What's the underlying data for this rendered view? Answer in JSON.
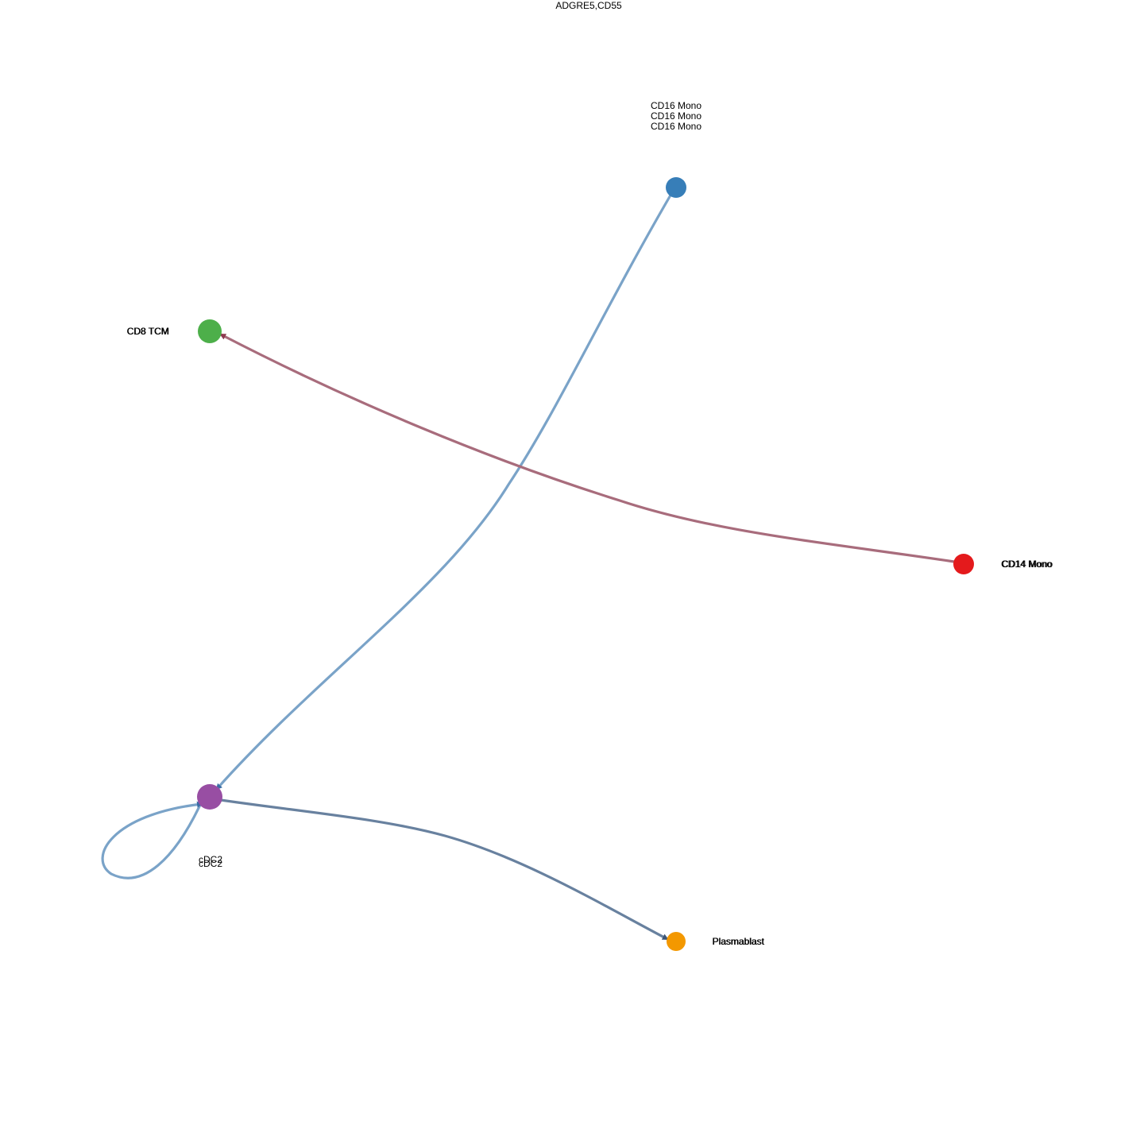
{
  "title": "ADGRE5,CD55",
  "nodes": [
    {
      "id": "cd16",
      "label": "CD16 Mono",
      "color": "#377EB8"
    },
    {
      "id": "cd8",
      "label": "CD8 TCM",
      "color": "#4DAF4A"
    },
    {
      "id": "cd14",
      "label": "CD14 Mono",
      "color": "#E41A1C"
    },
    {
      "id": "cdc2",
      "label": "cDC2",
      "color": "#984EA3"
    },
    {
      "id": "plasma",
      "label": "Plasmablast",
      "color": "#F39800"
    }
  ],
  "edges": [
    {
      "source": "CD16 Mono",
      "target": "cDC2",
      "color": "#7AA3C8"
    },
    {
      "source": "CD14 Mono",
      "target": "CD8 TCM",
      "color": "#A86C7C"
    },
    {
      "source": "cDC2",
      "target": "Plasmablast",
      "color": "#68819F"
    },
    {
      "source": "cDC2",
      "target": "cDC2",
      "color": "#7AA3C8"
    }
  ]
}
